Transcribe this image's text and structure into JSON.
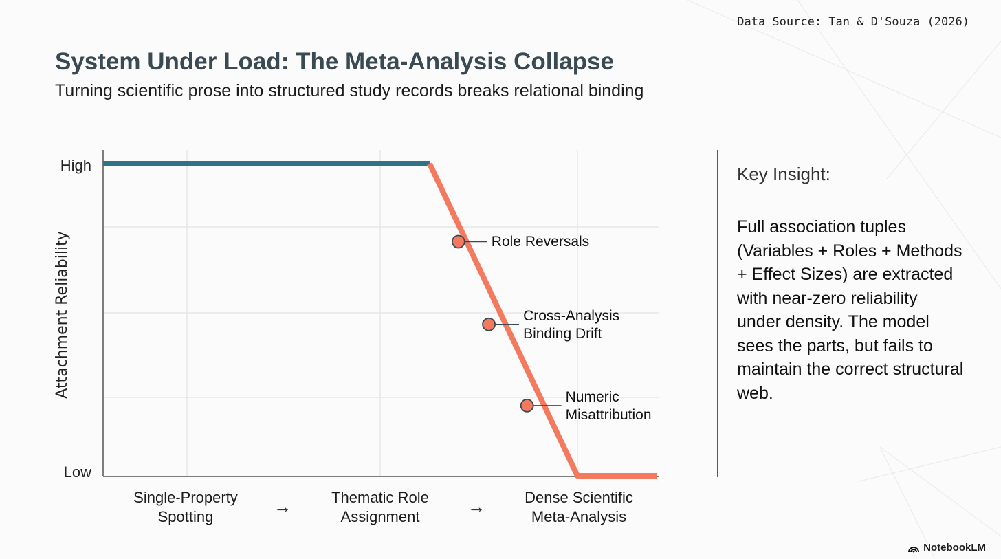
{
  "header": {
    "source": "Data Source: Tan & D'Souza (2026)",
    "title": "System Under Load: The Meta-Analysis Collapse",
    "subtitle": "Turning scientific prose into structured study records breaks relational binding"
  },
  "chart_data": {
    "type": "line",
    "ylabel": "Attachment Reliability",
    "y_tick_labels": [
      "High",
      "Low"
    ],
    "ylim": [
      0,
      100
    ],
    "xlim": [
      0,
      100
    ],
    "grid": true,
    "x_categories": [
      "Single-Property Spotting",
      "Thematic Role Assignment",
      "Dense Scientific Meta-Analysis"
    ],
    "x_arrow": "→",
    "series": [
      {
        "name": "stable",
        "color": "#2f7385",
        "points": [
          [
            0,
            100
          ],
          [
            59,
            100
          ]
        ]
      },
      {
        "name": "collapse",
        "color": "#f47a5f",
        "points": [
          [
            59,
            100
          ],
          [
            85.7,
            0
          ],
          [
            100,
            0
          ]
        ]
      }
    ],
    "annotations": [
      {
        "lines": [
          "Role Reversals"
        ],
        "x": 64.2,
        "y": 75
      },
      {
        "lines": [
          "Cross-Analysis",
          "Binding Drift"
        ],
        "x": 69.7,
        "y": 48.5
      },
      {
        "lines": [
          "Numeric",
          "Misattribution"
        ],
        "x": 76.6,
        "y": 22.5
      }
    ]
  },
  "insight": {
    "title": "Key Insight:",
    "body": "Full association tuples (Variables + Roles + Methods + Effect Sizes) are extracted with near-zero reliability under density. The model sees the parts, but fails to maintain the correct structural web."
  },
  "branding": {
    "logo_text": "NotebookLM"
  }
}
